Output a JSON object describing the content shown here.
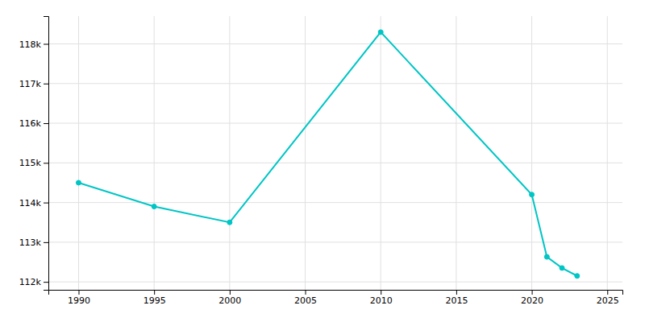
{
  "chart_data": {
    "type": "line",
    "x": [
      1990,
      1995,
      2000,
      2010,
      2020,
      2021,
      2022,
      2023
    ],
    "series": [
      {
        "color": "#00C5C5",
        "marker": "circle",
        "values": [
          114500,
          113900,
          113500,
          118296,
          114200,
          112630,
          112350,
          112150
        ]
      }
    ],
    "xlim": [
      1988,
      2026
    ],
    "ylim": [
      111800,
      118700
    ],
    "xticks": [
      1990,
      1995,
      2000,
      2005,
      2010,
      2015,
      2020,
      2025
    ],
    "yticks": [
      {
        "value": 112000,
        "label": "112k"
      },
      {
        "value": 113000,
        "label": "113k"
      },
      {
        "value": 114000,
        "label": "114k"
      },
      {
        "value": 115000,
        "label": "115k"
      },
      {
        "value": 116000,
        "label": "116k"
      },
      {
        "value": 117000,
        "label": "117k"
      },
      {
        "value": 118000,
        "label": "118k"
      }
    ],
    "grid": true
  }
}
